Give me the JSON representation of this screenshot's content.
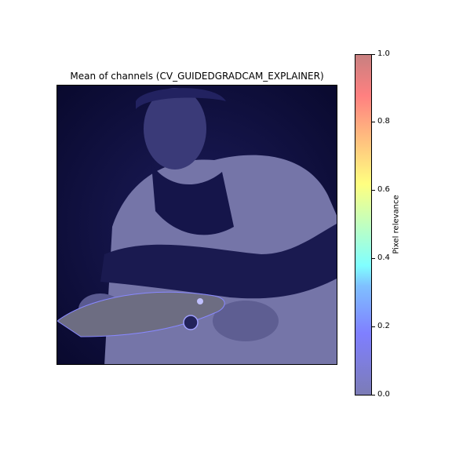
{
  "chart_data": {
    "type": "heatmap",
    "title": "Mean of channels (CV_GUIDEDGRADCAM_EXPLAINER)",
    "colorbar": {
      "label": "Pixel relevance",
      "range": [
        0,
        1
      ],
      "ticks": [
        "0.0",
        "0.2",
        "0.4",
        "0.6",
        "0.8",
        "1.0"
      ],
      "colormap": "jet"
    },
    "colors": {
      "background": "#0d0d3a",
      "overlay": "#3a3a8c"
    }
  }
}
